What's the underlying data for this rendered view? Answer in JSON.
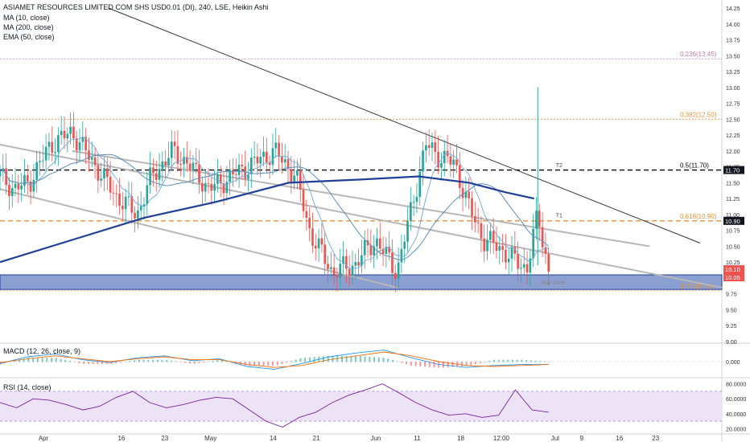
{
  "header": {
    "title": "ASIAMET RESOURCES LIMITED COM SHS USD0.01 (DI), 240, LSE, Heikin Ashi",
    "indicators": [
      "MA (10, close)",
      "MA (200, close)",
      "EMA (50, close)"
    ]
  },
  "colors": {
    "up": "#26a69a",
    "down": "#ef5350",
    "ma10": "#6fa8dc",
    "ma200": "#1f3f99",
    "ema50": "#5b8fb9",
    "fib": "#e69138",
    "fib_top": "#c27ba0",
    "zone": "#3d5fb0",
    "channel": "#b7b7b7",
    "trend": "#333333",
    "rsi": "#7b1fa2",
    "macd": "#2196f3",
    "signal": "#ff6d00"
  },
  "chart_data": [
    {
      "type": "candlestick",
      "name": "main-price-pane",
      "ylim": [
        9.0,
        14.25
      ],
      "y_ticks": [
        "14.25",
        "14.00",
        "13.75",
        "13.50",
        "13.25",
        "13.00",
        "12.75",
        "12.50",
        "12.25",
        "12.00",
        "11.75",
        "11.50",
        "11.25",
        "11.00",
        "10.75",
        "10.50",
        "10.25",
        "10.00",
        "9.75",
        "9.50",
        "9.25",
        "9.00"
      ],
      "x_tick_labels": [
        {
          "label": "Apr",
          "t": 0.06
        },
        {
          "label": "16",
          "t": 0.17
        },
        {
          "label": "23",
          "t": 0.23
        },
        {
          "label": "May",
          "t": 0.29
        },
        {
          "label": "14",
          "t": 0.38
        },
        {
          "label": "21",
          "t": 0.44
        },
        {
          "label": "Jun",
          "t": 0.52
        },
        {
          "label": "11",
          "t": 0.58
        },
        {
          "label": "18",
          "t": 0.64
        },
        {
          "label": "12:00",
          "t": 0.69
        },
        {
          "label": "Jul",
          "t": 0.77
        },
        {
          "label": "9",
          "t": 0.81
        },
        {
          "label": "16",
          "t": 0.86
        },
        {
          "label": "23",
          "t": 0.91
        }
      ],
      "fib_levels": [
        {
          "label": "0.236(13.45)",
          "value": 13.45
        },
        {
          "label": "0.382(12.50)",
          "value": 12.5
        },
        {
          "label": "0.5(11.70)",
          "value": 11.7
        },
        {
          "label": "0.618(10.90)",
          "value": 10.9
        },
        {
          "label": "0.786(9.80)",
          "value": 9.8
        }
      ],
      "price_badges": [
        {
          "label": "11.70",
          "value": 11.7
        },
        {
          "label": "10.90",
          "value": 10.9
        },
        {
          "label": "10.10",
          "value": 10.1
        },
        {
          "label": "10.05",
          "value": 10.05
        }
      ],
      "annotations": [
        {
          "label": "T2",
          "value": 11.72
        },
        {
          "label": "T1",
          "value": 10.93
        },
        {
          "label": "Buy zone",
          "value": 9.87
        }
      ],
      "buy_zone": [
        9.82,
        10.05
      ],
      "candles_keypoints": [
        [
          0,
          11.6
        ],
        [
          0.02,
          11.4
        ],
        [
          0.04,
          11.5
        ],
        [
          0.07,
          12.1
        ],
        [
          0.1,
          12.3
        ],
        [
          0.13,
          11.8
        ],
        [
          0.16,
          11.3
        ],
        [
          0.19,
          11.0
        ],
        [
          0.21,
          11.6
        ],
        [
          0.24,
          12.0
        ],
        [
          0.26,
          11.8
        ],
        [
          0.29,
          11.4
        ],
        [
          0.32,
          11.6
        ],
        [
          0.35,
          11.8
        ],
        [
          0.38,
          12.0
        ],
        [
          0.41,
          11.6
        ],
        [
          0.43,
          10.7
        ],
        [
          0.46,
          10.1
        ],
        [
          0.49,
          10.2
        ],
        [
          0.52,
          10.6
        ],
        [
          0.55,
          10.1
        ],
        [
          0.57,
          11.1
        ],
        [
          0.59,
          12.1
        ],
        [
          0.61,
          11.9
        ],
        [
          0.63,
          11.8
        ],
        [
          0.65,
          11.1
        ],
        [
          0.67,
          10.6
        ],
        [
          0.69,
          10.5
        ],
        [
          0.71,
          10.3
        ],
        [
          0.73,
          10.15
        ],
        [
          0.745,
          11.0
        ],
        [
          0.76,
          10.1
        ]
      ],
      "channel_lines": [
        {
          "from": [
            0,
            12.1
          ],
          "to": [
            1,
            9.85
          ]
        },
        {
          "from": [
            0,
            11.4
          ],
          "to": [
            0.55,
            9.85
          ]
        },
        {
          "from": [
            0.1,
            12.0
          ],
          "to": [
            0.9,
            10.5
          ]
        }
      ],
      "trend_line": {
        "from": [
          0.15,
          14.25
        ],
        "to": [
          0.97,
          10.55
        ]
      }
    },
    {
      "type": "line",
      "name": "macd-pane",
      "label": "MACD (12, 26, close, 9)",
      "y_ticks": [
        "0.000"
      ],
      "series": [
        {
          "values": [
            -0.02,
            0.05,
            0.08,
            0.02,
            -0.01,
            0.04,
            0.06,
            0.01,
            0.03,
            -0.05,
            -0.08,
            -0.02,
            0.05,
            0.09,
            0.12,
            0.04,
            -0.03,
            -0.06,
            -0.04,
            -0.03,
            -0.03
          ]
        },
        {
          "values": [
            -0.01,
            0.03,
            0.06,
            0.03,
            0.0,
            0.03,
            0.05,
            0.02,
            0.02,
            -0.03,
            -0.06,
            -0.04,
            0.02,
            0.06,
            0.1,
            0.06,
            0.0,
            -0.04,
            -0.05,
            -0.04,
            -0.03
          ]
        }
      ]
    },
    {
      "type": "line",
      "name": "rsi-pane",
      "label": "RSI (14, close)",
      "y_ticks": [
        "80.0000",
        "60.0000",
        "40.0000",
        "20.0000"
      ],
      "ylim": [
        15,
        85
      ],
      "series": [
        {
          "values": [
            55,
            48,
            60,
            58,
            52,
            45,
            50,
            62,
            70,
            55,
            48,
            52,
            58,
            62,
            60,
            45,
            30,
            22,
            35,
            42,
            55,
            65,
            72,
            80,
            68,
            55,
            45,
            38,
            40,
            35,
            38,
            72,
            45,
            42
          ]
        }
      ]
    }
  ]
}
